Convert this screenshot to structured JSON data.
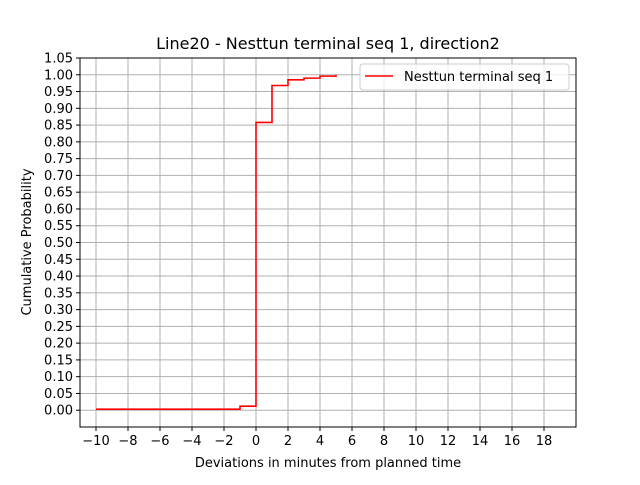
{
  "chart_data": {
    "type": "line",
    "style": "step-cdf",
    "title": "Line20 - Nesttun terminal seq 1, direction2",
    "xlabel": "Deviations in minutes from planned time",
    "ylabel": "Cumulative Probability",
    "xlim": [
      -11,
      20
    ],
    "ylim": [
      -0.05,
      1.05
    ],
    "xticks": [
      -10,
      -8,
      -6,
      -4,
      -2,
      0,
      2,
      4,
      6,
      8,
      10,
      12,
      14,
      16,
      18
    ],
    "xtick_labels": [
      "−10",
      "−8",
      "−6",
      "−4",
      "−2",
      "0",
      "2",
      "4",
      "6",
      "8",
      "10",
      "12",
      "14",
      "16",
      "18"
    ],
    "yticks": [
      0.0,
      0.05,
      0.1,
      0.15,
      0.2,
      0.25,
      0.3,
      0.35,
      0.4,
      0.45,
      0.5,
      0.55,
      0.6,
      0.65,
      0.7,
      0.75,
      0.8,
      0.85,
      0.9,
      0.95,
      1.0,
      1.05
    ],
    "ytick_labels": [
      "0.00",
      "0.05",
      "0.10",
      "0.15",
      "0.20",
      "0.25",
      "0.30",
      "0.35",
      "0.40",
      "0.45",
      "0.50",
      "0.55",
      "0.60",
      "0.65",
      "0.70",
      "0.75",
      "0.80",
      "0.85",
      "0.90",
      "0.95",
      "1.00",
      "1.05"
    ],
    "grid": true,
    "legend_position": "top-right",
    "series": [
      {
        "name": "Nesttun terminal seq 1",
        "color": "#ff0000",
        "x": [
          -10,
          -1,
          0,
          1,
          2,
          3,
          4,
          5
        ],
        "y": [
          0.003,
          0.012,
          0.858,
          0.968,
          0.985,
          0.99,
          0.996,
          1.0
        ]
      }
    ]
  },
  "colors": {
    "grid": "#b0b0b0",
    "axes": "#000000",
    "series": "#ff0000",
    "legend_border": "#cccccc"
  }
}
